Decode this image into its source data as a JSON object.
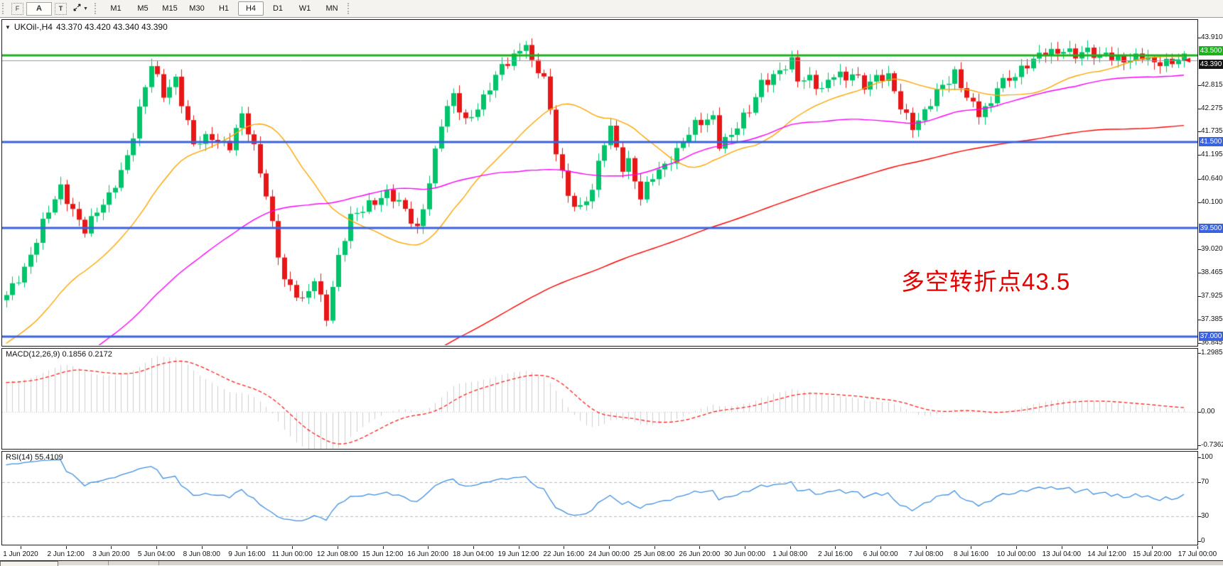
{
  "toolbar": {
    "dock_icon_label": "F",
    "annotate_button": "A",
    "text_button": "T",
    "timeframes": [
      "M1",
      "M5",
      "M15",
      "M30",
      "H1",
      "H4",
      "D1",
      "W1",
      "MN"
    ],
    "active_timeframe": "H4"
  },
  "chart": {
    "symbol_title": "UKOil-,H4",
    "ohlc_text": "43.370 43.420 43.340 43.390",
    "annotation": {
      "text": "多空转折点43.5",
      "color": "#e60000"
    },
    "price_axis": {
      "labels": [
        "43.910",
        "42.815",
        "42.275",
        "41.735",
        "41.195",
        "40.640",
        "40.100",
        "39.020",
        "38.465",
        "37.925",
        "37.385",
        "36.845"
      ],
      "tags": [
        {
          "value": "43.500",
          "bg": "#1db11d",
          "price": 43.5,
          "align": "above"
        },
        {
          "value": "43.390",
          "bg": "#141414",
          "price": 43.39,
          "align": "below"
        },
        {
          "value": "41.500",
          "bg": "#3a62dd",
          "price": 41.5,
          "align": "center"
        },
        {
          "value": "39.500",
          "bg": "#3a62dd",
          "price": 39.5,
          "align": "center"
        },
        {
          "value": "37.000",
          "bg": "#3a62dd",
          "price": 37.0,
          "align": "center"
        }
      ]
    },
    "time_axis": [
      "1 Jun 2020",
      "2 Jun 12:00",
      "3 Jun 20:00",
      "5 Jun 04:00",
      "8 Jun 08:00",
      "9 Jun 16:00",
      "11 Jun 00:00",
      "12 Jun 08:00",
      "15 Jun 12:00",
      "16 Jun 20:00",
      "18 Jun 04:00",
      "19 Jun 12:00",
      "22 Jun 16:00",
      "24 Jun 00:00",
      "25 Jun 08:00",
      "26 Jun 20:00",
      "30 Jun 00:00",
      "1 Jul 08:00",
      "2 Jul 16:00",
      "6 Jul 00:00",
      "7 Jul 08:00",
      "8 Jul 16:00",
      "10 Jul 00:00",
      "13 Jul 04:00",
      "14 Jul 12:00",
      "15 Jul 20:00",
      "17 Jul 00:00"
    ]
  },
  "macd_panel": {
    "label": "MACD(12,26,9) 0.1856 0.2172",
    "axis": [
      1.2985,
      0,
      -0.7362
    ],
    "axis_labels": [
      "1.2985",
      "0.00",
      "-0.7362"
    ]
  },
  "rsi_panel": {
    "label": "RSI(14) 55.4109",
    "axis": [
      100,
      70,
      30,
      0
    ],
    "axis_labels": [
      "100",
      "70",
      "30",
      "0"
    ],
    "levels": [
      70,
      30
    ]
  },
  "colors": {
    "up": "#00c46a",
    "down": "#e81717",
    "ma_fast": "#ffa500",
    "ma_mid": "#ff00ff",
    "ma_slow": "#ff0000",
    "macd_hist": "#cfcfcf",
    "macd_signal": "#ff2222",
    "rsi": "#3f8ede",
    "level_green": "#1db11d",
    "level_blue": "#3a62dd",
    "bid_gray": "#999999"
  },
  "chart_data": {
    "type": "candlestick",
    "symbol": "UKOIl",
    "timeframe": "H4",
    "bars": 196,
    "time_range": [
      "1 Jun 2020 00:00",
      "17 Jul 2020 00:00"
    ],
    "ylim": [
      36.78,
      44.33
    ],
    "visible_price_labels_step": 0.54,
    "anchors": [
      [
        0,
        37.9
      ],
      [
        3,
        38.6
      ],
      [
        6,
        39.6
      ],
      [
        9,
        40.4
      ],
      [
        13,
        39.5
      ],
      [
        17,
        40.2
      ],
      [
        20,
        41.2
      ],
      [
        24,
        43.25
      ],
      [
        26,
        42.6
      ],
      [
        28,
        43.0
      ],
      [
        31,
        41.4
      ],
      [
        34,
        41.6
      ],
      [
        37,
        41.45
      ],
      [
        39,
        42.1
      ],
      [
        41,
        41.3
      ],
      [
        43,
        40.3
      ],
      [
        46,
        38.3
      ],
      [
        49,
        37.75
      ],
      [
        51,
        38.35
      ],
      [
        53,
        37.5
      ],
      [
        55,
        38.8
      ],
      [
        57,
        39.7
      ],
      [
        60,
        40.1
      ],
      [
        63,
        40.3
      ],
      [
        66,
        39.9
      ],
      [
        68,
        39.5
      ],
      [
        70,
        40.6
      ],
      [
        72,
        41.9
      ],
      [
        74,
        42.55
      ],
      [
        76,
        42.0
      ],
      [
        79,
        42.5
      ],
      [
        82,
        43.2
      ],
      [
        84,
        43.5
      ],
      [
        86,
        43.85
      ],
      [
        87,
        43.3
      ],
      [
        89,
        42.95
      ],
      [
        91,
        41.3
      ],
      [
        93,
        40.3
      ],
      [
        95,
        39.95
      ],
      [
        97,
        40.35
      ],
      [
        99,
        41.5
      ],
      [
        100,
        41.85
      ],
      [
        102,
        40.95
      ],
      [
        103,
        41.05
      ],
      [
        105,
        40.15
      ],
      [
        107,
        40.7
      ],
      [
        109,
        41.0
      ],
      [
        111,
        41.3
      ],
      [
        114,
        41.85
      ],
      [
        117,
        42.1
      ],
      [
        118,
        41.5
      ],
      [
        120,
        41.65
      ],
      [
        123,
        42.2
      ],
      [
        125,
        42.9
      ],
      [
        127,
        43.05
      ],
      [
        130,
        43.3
      ],
      [
        131,
        42.9
      ],
      [
        133,
        43.0
      ],
      [
        135,
        42.75
      ],
      [
        137,
        43.05
      ],
      [
        139,
        42.9
      ],
      [
        140,
        43.1
      ],
      [
        142,
        42.85
      ],
      [
        144,
        43.0
      ],
      [
        146,
        42.95
      ],
      [
        148,
        42.3
      ],
      [
        150,
        41.9
      ],
      [
        152,
        42.2
      ],
      [
        154,
        42.6
      ],
      [
        156,
        42.9
      ],
      [
        157,
        43.1
      ],
      [
        159,
        42.6
      ],
      [
        161,
        42.15
      ],
      [
        163,
        42.3
      ],
      [
        164,
        42.8
      ],
      [
        166,
        43.0
      ],
      [
        168,
        43.2
      ],
      [
        170,
        43.35
      ],
      [
        172,
        43.55
      ],
      [
        174,
        43.6
      ],
      [
        175,
        43.7
      ],
      [
        177,
        43.5
      ],
      [
        179,
        43.55
      ],
      [
        181,
        43.45
      ],
      [
        182,
        43.6
      ],
      [
        184,
        43.45
      ],
      [
        186,
        43.35
      ],
      [
        188,
        43.45
      ],
      [
        190,
        43.35
      ],
      [
        191,
        43.4
      ],
      [
        193,
        43.35
      ],
      [
        195,
        43.39
      ]
    ],
    "moving_averages": [
      {
        "period": 24,
        "method": "sma",
        "color": "#ffa500"
      },
      {
        "period": 60,
        "method": "sma",
        "color": "#ff00ff"
      },
      {
        "period": 160,
        "method": "sma",
        "color": "#ff0000"
      }
    ],
    "hlines": [
      {
        "price": 43.5,
        "color": "#1db11d",
        "width": 3
      },
      {
        "price": 43.39,
        "color": "#999999",
        "width": 1
      },
      {
        "price": 41.5,
        "color": "#3a62dd",
        "width": 3
      },
      {
        "price": 39.5,
        "color": "#3a62dd",
        "width": 3
      },
      {
        "price": 37.0,
        "color": "#3a62dd",
        "width": 3
      }
    ],
    "macd": {
      "fast": 12,
      "slow": 26,
      "signal": 9,
      "last_main": 0.1856,
      "last_signal": 0.2172
    },
    "rsi": {
      "period": 14,
      "last": 55.4109
    },
    "last_price": 43.39,
    "display_ohlc": {
      "open": 43.37,
      "high": 43.42,
      "low": 43.34,
      "close": 43.39
    }
  }
}
